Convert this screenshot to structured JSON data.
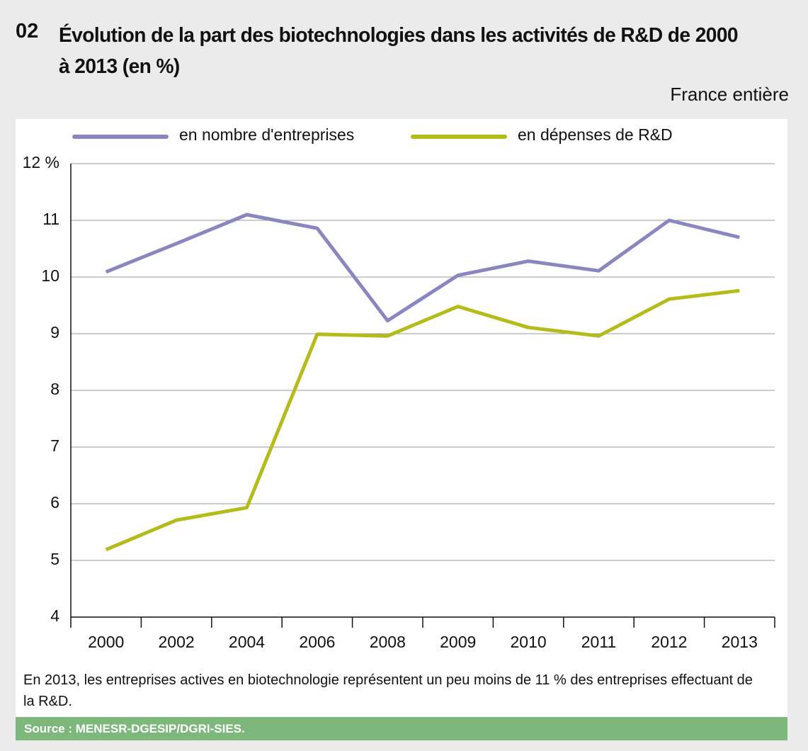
{
  "chart_data": {
    "type": "line",
    "figure_number": "02",
    "title": "Évolution de la part des biotechnologies dans les activités de R&D de 2000 à 2013 (en %)",
    "subtitle": "France entière",
    "categories": [
      "2000",
      "2002",
      "2004",
      "2006",
      "2008",
      "2009",
      "2010",
      "2011",
      "2012",
      "2013"
    ],
    "series": [
      {
        "name": "en nombre d'entreprises",
        "color": "#8a87c0",
        "values": [
          10.09,
          10.59,
          11.1,
          10.86,
          9.23,
          10.03,
          10.28,
          10.11,
          11.0,
          10.7
        ]
      },
      {
        "name": "en dépenses de R&D",
        "color": "#b4bc1a",
        "values": [
          5.19,
          5.71,
          5.93,
          8.99,
          8.96,
          9.48,
          9.11,
          8.96,
          9.61,
          9.76
        ]
      }
    ],
    "ylim": [
      4,
      12
    ],
    "yticks": [
      4,
      5,
      6,
      7,
      8,
      9,
      10,
      11,
      {
        "value": 12,
        "label": "12 %"
      }
    ],
    "grid": true,
    "legend": "top",
    "note": "En 2013, les entreprises actives en biotechnologie représentent un peu moins de 11 % des entreprises effectuant de la R&D.",
    "source": "Source : MENESR-DGESIP/DGRI-SIES."
  }
}
